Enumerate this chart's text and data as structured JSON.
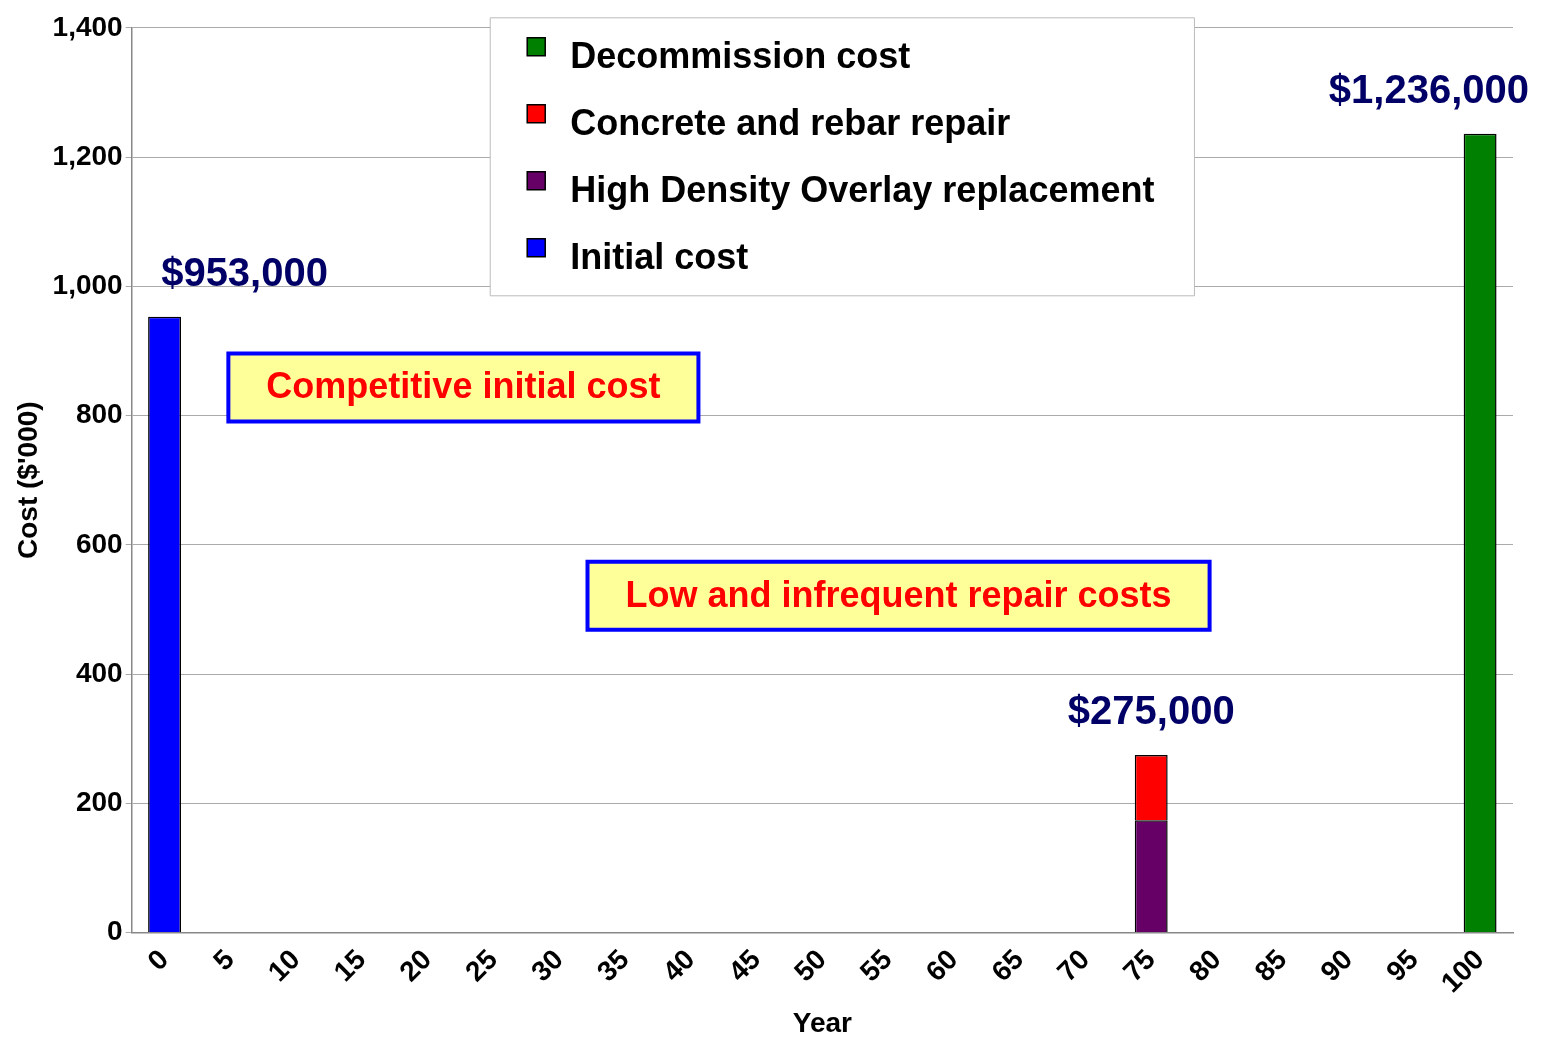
{
  "chart_data": {
    "type": "bar",
    "stacked": true,
    "xlabel": "Year",
    "ylabel": "Cost ($'000)",
    "categories": [
      "0",
      "5",
      "10",
      "15",
      "20",
      "25",
      "30",
      "35",
      "40",
      "45",
      "50",
      "55",
      "60",
      "65",
      "70",
      "75",
      "80",
      "85",
      "90",
      "95",
      "100"
    ],
    "series": [
      {
        "name": "Initial cost",
        "color": "#0000ff",
        "values": [
          953,
          null,
          null,
          null,
          null,
          null,
          null,
          null,
          null,
          null,
          null,
          null,
          null,
          null,
          null,
          null,
          null,
          null,
          null,
          null,
          null
        ]
      },
      {
        "name": "High Density Overlay replacement",
        "color": "#660066",
        "values": [
          null,
          null,
          null,
          null,
          null,
          null,
          null,
          null,
          null,
          null,
          null,
          null,
          null,
          null,
          null,
          174,
          null,
          null,
          null,
          null,
          null
        ]
      },
      {
        "name": "Concrete and rebar repair",
        "color": "#ff0000",
        "values": [
          null,
          null,
          null,
          null,
          null,
          null,
          null,
          null,
          null,
          null,
          null,
          null,
          null,
          null,
          null,
          101,
          null,
          null,
          null,
          null,
          null
        ]
      },
      {
        "name": "Decommission cost",
        "color": "#008000",
        "values": [
          null,
          null,
          null,
          null,
          null,
          null,
          null,
          null,
          null,
          null,
          null,
          null,
          null,
          null,
          null,
          null,
          null,
          null,
          null,
          null,
          1236
        ]
      }
    ],
    "totals": [
      "$953,000",
      null,
      null,
      null,
      null,
      null,
      null,
      null,
      null,
      null,
      null,
      null,
      null,
      null,
      null,
      "$275,000",
      null,
      null,
      null,
      null,
      "$1,236,000"
    ],
    "annotations": [
      "Competitive initial cost",
      "Low and infrequent repair costs"
    ],
    "ylim": [
      0,
      1400
    ],
    "yticks": [
      0,
      200,
      400,
      600,
      800,
      {
        "value": 1000,
        "label": "1,000"
      },
      {
        "value": 1200,
        "label": "1,200"
      },
      {
        "value": 1400,
        "label": "1,400"
      }
    ],
    "grid": "y",
    "legend": "top"
  }
}
